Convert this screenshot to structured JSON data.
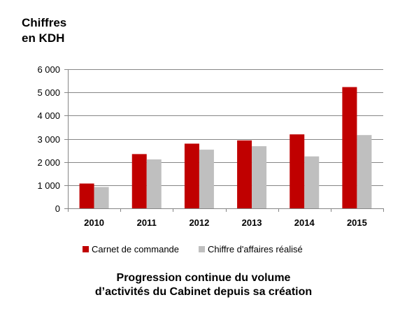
{
  "unit_label": {
    "line1": "Chiffres",
    "line2": "en KDH"
  },
  "caption": {
    "line1": "Progression continue du volume",
    "line2": "d’activités du Cabinet depuis sa création"
  },
  "legend": [
    {
      "label": "Carnet de commande",
      "color": "#c00000"
    },
    {
      "label": "Chiffre d'affaires réalisé",
      "color": "#bfbfbf"
    }
  ],
  "chart_data": {
    "type": "bar",
    "categories": [
      "2010",
      "2011",
      "2012",
      "2013",
      "2014",
      "2015"
    ],
    "series": [
      {
        "name": "Carnet de commande",
        "color": "#c00000",
        "values": [
          1070,
          2340,
          2790,
          2930,
          3190,
          5230
        ]
      },
      {
        "name": "Chiffre d'affaires réalisé",
        "color": "#bfbfbf",
        "values": [
          920,
          2110,
          2530,
          2680,
          2240,
          3160
        ]
      }
    ],
    "ylim": [
      0,
      6000
    ],
    "yticks": [
      0,
      1000,
      2000,
      3000,
      4000,
      5000,
      6000
    ],
    "ytick_labels": [
      "0",
      "1 000",
      "2 000",
      "3 000",
      "4 000",
      "5 000",
      "6 000"
    ],
    "grid": true,
    "legend_position": "bottom"
  }
}
